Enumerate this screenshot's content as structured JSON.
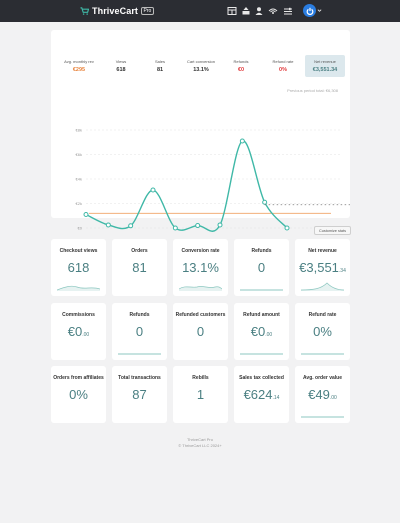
{
  "header": {
    "brand": "ThriveCart",
    "badge": "Pro",
    "icons": [
      "grid-icon",
      "upload-icon",
      "user-icon",
      "broadcast-icon",
      "sliders-icon",
      "power-icon",
      "caret-down-icon"
    ],
    "colors": {
      "bar": "#2b2d33",
      "accent": "#3fb8a7",
      "power": "#2a7de1"
    }
  },
  "summary": [
    {
      "label": "Avg. monthly rev",
      "value": "€295",
      "color": "#e8823a"
    },
    {
      "label": "Views",
      "value": "618",
      "color": "#333333"
    },
    {
      "label": "Sales",
      "value": "81",
      "color": "#333333"
    },
    {
      "label": "Cart conversion",
      "value": "13.1%",
      "color": "#333333"
    },
    {
      "label": "Refunds",
      "value": "€0",
      "color": "#e0383a"
    },
    {
      "label": "Refund rate",
      "value": "0%",
      "color": "#e0383a"
    },
    {
      "label": "Net revenue",
      "value": "€3,551.34",
      "color": "#4a7f82",
      "active": true
    }
  ],
  "chart_note": "Previous period total: €6,308",
  "chart_data": {
    "type": "line",
    "yticks": [
      "€8k",
      "€6k",
      "€4k",
      "€2k",
      "€0"
    ],
    "ylim": [
      0,
      8000
    ],
    "grid": true,
    "series": [
      {
        "values": [
          1100,
          250,
          180,
          3100,
          0,
          200,
          250,
          7100,
          2100,
          0
        ],
        "color": "#3fb8a7"
      },
      {
        "values": [
          null,
          null,
          null,
          null,
          null,
          null,
          null,
          null,
          1900,
          1900,
          1900,
          1900,
          1900
        ],
        "color": "#777777",
        "dashed": true
      }
    ],
    "reference_line": {
      "value": 1200,
      "color": "#f0a466"
    }
  },
  "customize_label": "Customize stats",
  "tiles": [
    {
      "title": "Checkout views",
      "value": "618",
      "spark": "wave"
    },
    {
      "title": "Orders",
      "value": "81",
      "spark": "none"
    },
    {
      "title": "Conversion rate",
      "value": "13.1%",
      "spark": "wave2"
    },
    {
      "title": "Refunds",
      "value": "0",
      "spark": "flat"
    },
    {
      "title": "Net revenue",
      "value": "€3,551",
      "cents": ".34",
      "spark": "peak"
    },
    {
      "title": "Commissions",
      "value": "€0",
      "cents": ".00",
      "spark": "none"
    },
    {
      "title": "Refunds",
      "value": "0",
      "spark": "flat"
    },
    {
      "title": "Refunded customers",
      "value": "0",
      "spark": "none"
    },
    {
      "title": "Refund amount",
      "value": "€0",
      "cents": ".00",
      "spark": "flat"
    },
    {
      "title": "Refund rate",
      "value": "0%",
      "spark": "flat"
    },
    {
      "title": "Orders from affiliates",
      "value": "0%",
      "spark": "none"
    },
    {
      "title": "Total transactions",
      "value": "87",
      "spark": "none"
    },
    {
      "title": "Rebills",
      "value": "1",
      "spark": "none"
    },
    {
      "title": "Sales tax collected",
      "value": "€624",
      "cents": ".14",
      "spark": "none"
    },
    {
      "title": "Avg. order value",
      "value": "€49",
      "cents": ".00",
      "spark": "flat"
    }
  ],
  "footer": {
    "line1": "ThriveCart Pro",
    "line2": "© ThriveCart LLC 2024+"
  }
}
